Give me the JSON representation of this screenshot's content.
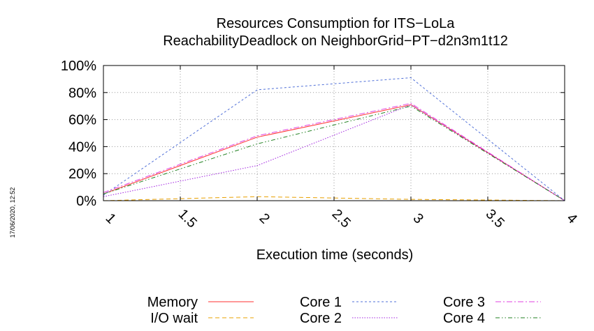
{
  "timestamp": "17/06/2020, 12:52",
  "chart_data": {
    "type": "line",
    "title": "Resources Consumption for ITS−LoLa",
    "subtitle": "ReachabilityDeadlock on NeighborGrid−PT−d2n3m1t12",
    "xlabel": "Execution time (seconds)",
    "ylabel": "",
    "xlim": [
      1,
      4
    ],
    "ylim": [
      0,
      100
    ],
    "grid": true,
    "legend_position": "bottom",
    "x_ticks": [
      {
        "value": 1,
        "label": "1"
      },
      {
        "value": 1.5,
        "label": "1.5"
      },
      {
        "value": 2,
        "label": "2"
      },
      {
        "value": 2.5,
        "label": "2.5"
      },
      {
        "value": 3,
        "label": "3"
      },
      {
        "value": 3.5,
        "label": "3.5"
      },
      {
        "value": 4,
        "label": "4"
      }
    ],
    "y_ticks": [
      {
        "value": 0,
        "label": "0%"
      },
      {
        "value": 20,
        "label": "20%"
      },
      {
        "value": 40,
        "label": "40%"
      },
      {
        "value": 60,
        "label": "60%"
      },
      {
        "value": 80,
        "label": "80%"
      },
      {
        "value": 100,
        "label": "100%"
      }
    ],
    "x": [
      1,
      2,
      3,
      4
    ],
    "series": [
      {
        "name": "Memory",
        "color": "#ff3030",
        "dash": "solid",
        "values": [
          5,
          47,
          71,
          0
        ]
      },
      {
        "name": "I/O wait",
        "color": "#e8a000",
        "dash": "dashed",
        "values": [
          0,
          3,
          1,
          0
        ]
      },
      {
        "name": "Core 1",
        "color": "#5070d8",
        "dash": "dotted-dash",
        "values": [
          4,
          82,
          91,
          0
        ]
      },
      {
        "name": "Core 2",
        "color": "#a020e0",
        "dash": "dotted",
        "values": [
          3,
          26,
          71,
          0
        ]
      },
      {
        "name": "Core 3",
        "color": "#e040e0",
        "dash": "dash-dot",
        "values": [
          6,
          48,
          72,
          0
        ]
      },
      {
        "name": "Core 4",
        "color": "#208020",
        "dash": "dash-dot-dot",
        "values": [
          5,
          42,
          70,
          0
        ]
      }
    ]
  }
}
